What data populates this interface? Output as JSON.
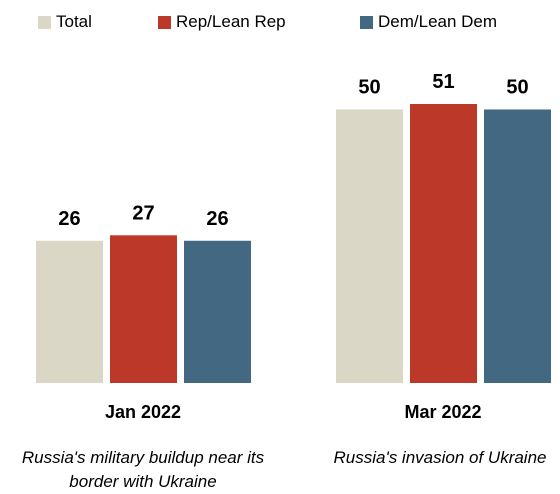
{
  "legend": [
    {
      "label": "Total",
      "color": "#dad7c7"
    },
    {
      "label": "Rep/Lean Rep",
      "color": "#bc3828"
    },
    {
      "label": "Dem/Lean Dem",
      "color": "#436882"
    }
  ],
  "chart_data": {
    "type": "bar",
    "categories": [
      "Jan 2022",
      "Mar 2022"
    ],
    "descriptions": [
      "Russia's military buildup near its border with Ukraine",
      "Russia's invasion of Ukraine"
    ],
    "series": [
      {
        "name": "Total",
        "values": [
          26,
          50
        ],
        "color": "#dad7c7"
      },
      {
        "name": "Rep/Lean Rep",
        "values": [
          27,
          51
        ],
        "color": "#bc3828"
      },
      {
        "name": "Dem/Lean Dem",
        "values": [
          26,
          50
        ],
        "color": "#436882"
      }
    ],
    "ylim": [
      0,
      51
    ],
    "grid": false,
    "legend_position": "top"
  }
}
